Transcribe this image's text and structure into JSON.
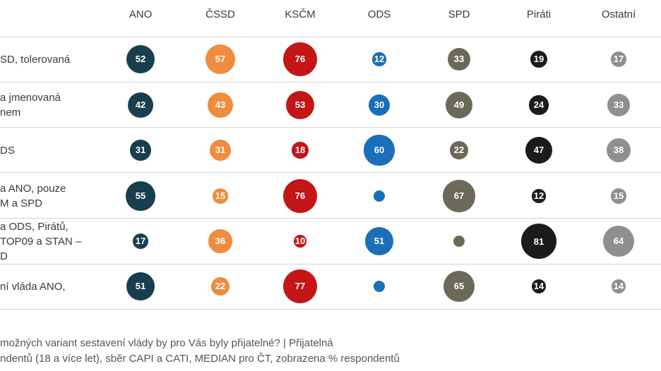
{
  "chart_data": {
    "type": "bubble-table",
    "columns": [
      {
        "name": "ANO",
        "color": "#173f4f"
      },
      {
        "name": "ČSSD",
        "color": "#f08c3c"
      },
      {
        "name": "KSČM",
        "color": "#c41517"
      },
      {
        "name": "ODS",
        "color": "#1a6fb8"
      },
      {
        "name": "SPD",
        "color": "#6b6a58"
      },
      {
        "name": "Piráti",
        "color": "#1b1b1b"
      },
      {
        "name": "Ostatní",
        "color": "#8f8f8f"
      }
    ],
    "rows": [
      {
        "label": "SD, tolerovaná",
        "values": [
          52,
          57,
          76,
          12,
          33,
          19,
          17
        ],
        "shown": [
          true,
          true,
          true,
          true,
          true,
          true,
          true
        ]
      },
      {
        "label": "a jmenovaná\nnem",
        "values": [
          42,
          43,
          53,
          30,
          49,
          24,
          33
        ],
        "shown": [
          true,
          true,
          true,
          true,
          true,
          true,
          true
        ]
      },
      {
        "label": "DS",
        "values": [
          31,
          31,
          18,
          60,
          22,
          47,
          38
        ],
        "shown": [
          true,
          true,
          true,
          true,
          true,
          true,
          true
        ]
      },
      {
        "label": "a ANO, pouze\nM a SPD",
        "values": [
          55,
          15,
          76,
          5,
          67,
          12,
          15
        ],
        "shown": [
          true,
          true,
          true,
          false,
          true,
          true,
          true
        ]
      },
      {
        "label": "a ODS, Pirátů,\nTOP09 a STAN –\nD",
        "values": [
          17,
          36,
          10,
          51,
          5,
          81,
          64
        ],
        "shown": [
          true,
          true,
          true,
          true,
          false,
          true,
          true
        ]
      },
      {
        "label": "ní vláda ANO,",
        "values": [
          51,
          22,
          77,
          5,
          65,
          14,
          14
        ],
        "shown": [
          true,
          true,
          true,
          false,
          true,
          true,
          true
        ]
      }
    ]
  },
  "footnote": {
    "line1": "možných variant sestavení vlády by pro Vás byly přijatelné? | Přijatelná",
    "line2": "ndentů (18 a více let), sběr CAPI a CATI, MEDIAN pro ČT, zobrazena % respondentů"
  }
}
